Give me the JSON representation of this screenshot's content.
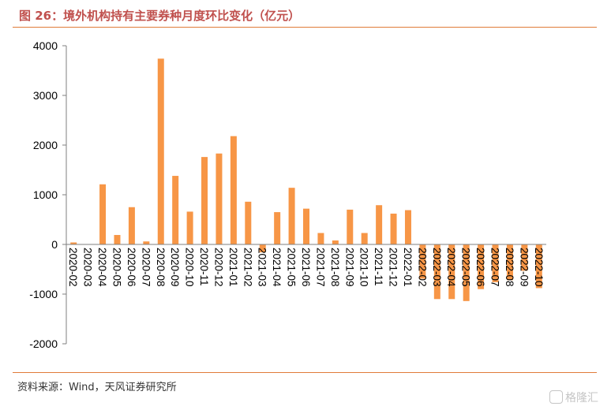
{
  "title": "图 26：境外机构持有主要券种月度环比变化（亿元）",
  "source": "资料来源：Wind，天风证券研究所",
  "watermark": "格隆汇",
  "colors": {
    "bar": "#f79646",
    "accent": "#e07b39",
    "title": "#c0504d"
  },
  "chart_data": {
    "type": "bar",
    "title": "图 26：境外机构持有主要券种月度环比变化（亿元）",
    "xlabel": "",
    "ylabel": "",
    "ylim": [
      -2000,
      4000
    ],
    "yticks": [
      -2000,
      -1000,
      0,
      1000,
      2000,
      3000,
      4000
    ],
    "grid": false,
    "legend": "none",
    "categories": [
      "2020-02",
      "2020-03",
      "2020-04",
      "2020-05",
      "2020-06",
      "2020-07",
      "2020-08",
      "2020-09",
      "2020-10",
      "2020-11",
      "2020-12",
      "2021-01",
      "2021-02",
      "2021-03",
      "2021-04",
      "2021-05",
      "2021-06",
      "2021-07",
      "2021-08",
      "2021-09",
      "2021-10",
      "2021-11",
      "2021-12",
      "2022-01",
      "2022-02",
      "2022-03",
      "2022-04",
      "2022-05",
      "2022-06",
      "2022-07",
      "2022-08",
      "2022-09",
      "2022-10"
    ],
    "values": [
      40,
      0,
      1210,
      190,
      750,
      60,
      3740,
      1380,
      660,
      1760,
      1830,
      2180,
      860,
      -160,
      650,
      1140,
      720,
      230,
      80,
      700,
      230,
      790,
      620,
      690,
      -690,
      -1100,
      -1100,
      -1140,
      -900,
      -760,
      -720,
      -530,
      -880
    ]
  }
}
